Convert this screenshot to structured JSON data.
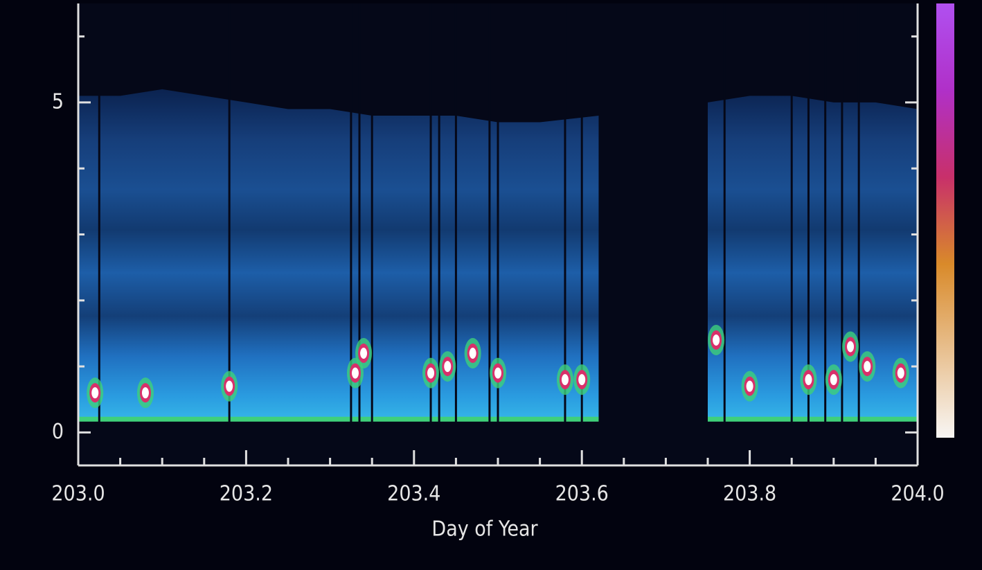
{
  "chart_data": {
    "type": "heatmap",
    "xlabel": "Day of Year",
    "xlim": [
      203.0,
      204.0
    ],
    "xticks": [
      {
        "value": 203.0,
        "label": "203.0"
      },
      {
        "value": 203.2,
        "label": "203.2"
      },
      {
        "value": 203.4,
        "label": "203.4"
      },
      {
        "value": 203.6,
        "label": "203.6"
      },
      {
        "value": 203.8,
        "label": "203.8"
      },
      {
        "value": 204.0,
        "label": "204.0"
      }
    ],
    "xminorticks": [
      203.05,
      203.1,
      203.15,
      203.25,
      203.3,
      203.35,
      203.45,
      203.5,
      203.55,
      203.65,
      203.7,
      203.75,
      203.85,
      203.9,
      203.95
    ],
    "ylim": [
      -0.5,
      6.5
    ],
    "yticks": [
      0,
      5
    ],
    "yminorticks": [
      1,
      2,
      3,
      4,
      6
    ],
    "surface_height": 0.2,
    "echo_top": {
      "x": [
        203.0,
        203.05,
        203.1,
        203.15,
        203.2,
        203.25,
        203.3,
        203.35,
        203.4,
        203.45,
        203.5,
        203.55,
        203.62,
        203.69,
        203.75,
        203.8,
        203.85,
        203.9,
        203.95,
        204.0
      ],
      "values": [
        5.1,
        5.1,
        5.2,
        5.1,
        5.0,
        4.9,
        4.9,
        4.8,
        4.8,
        4.8,
        4.7,
        4.7,
        4.8,
        null,
        5.0,
        5.1,
        5.1,
        5.0,
        5.0,
        4.9
      ]
    },
    "cores": {
      "x": [
        203.02,
        203.08,
        203.18,
        203.33,
        203.34,
        203.42,
        203.44,
        203.47,
        203.5,
        203.58,
        203.6,
        203.76,
        203.8,
        203.87,
        203.9,
        203.92,
        203.94,
        203.98
      ],
      "values": [
        0.6,
        0.6,
        0.7,
        0.9,
        1.2,
        0.9,
        1.0,
        1.2,
        0.9,
        0.8,
        0.8,
        1.4,
        0.7,
        0.8,
        0.8,
        1.3,
        1.0,
        0.9
      ]
    },
    "dropouts": [
      203.025,
      203.18,
      203.325,
      203.335,
      203.35,
      203.42,
      203.43,
      203.45,
      203.49,
      203.5,
      203.58,
      203.6,
      203.77,
      203.85,
      203.87,
      203.89,
      203.91,
      203.93
    ],
    "colorbar_colors": [
      "#f8f6f4",
      "#e8c090",
      "#d98a2a",
      "#c8306a",
      "#b030c8",
      "#b050f0"
    ]
  }
}
